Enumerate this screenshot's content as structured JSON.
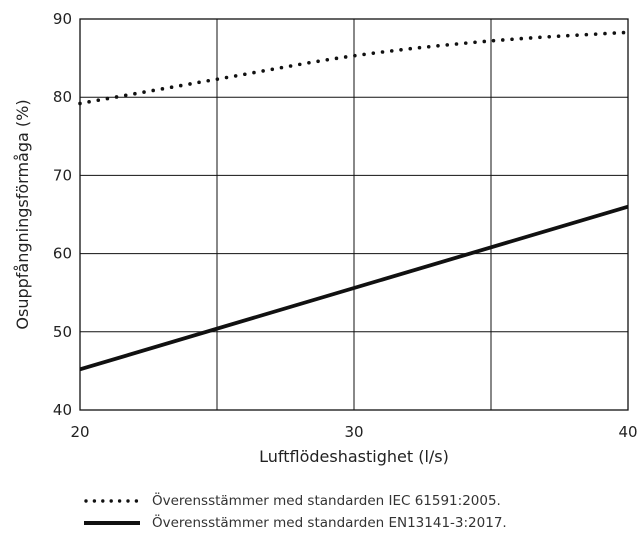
{
  "chart_data": {
    "type": "line",
    "xlabel": "Luftflödeshastighet (l/s)",
    "ylabel": "Osuppfångningsförmåga (%)",
    "xlim": [
      20,
      40
    ],
    "ylim": [
      40,
      90
    ],
    "xticks": [
      "20",
      "30",
      "40"
    ],
    "yticks": [
      "40",
      "50",
      "60",
      "70",
      "80",
      "90"
    ],
    "x_gridlines": [
      20,
      25,
      30,
      35,
      40
    ],
    "y_gridlines": [
      40,
      50,
      60,
      70,
      80,
      90
    ],
    "grid": true,
    "legend_position": "bottom",
    "series": [
      {
        "name": "Överensstämmer med standarden IEC 61591:2005.",
        "style": "dotted",
        "color": "#111111",
        "x": [
          20,
          25,
          30,
          35,
          40
        ],
        "y": [
          79.2,
          82.3,
          85.3,
          87.2,
          88.3
        ]
      },
      {
        "name": "Överensstämmer med standarden EN13141-3:2017.",
        "style": "solid",
        "color": "#111111",
        "x": [
          20,
          40
        ],
        "y": [
          45.2,
          66.0
        ]
      }
    ]
  }
}
